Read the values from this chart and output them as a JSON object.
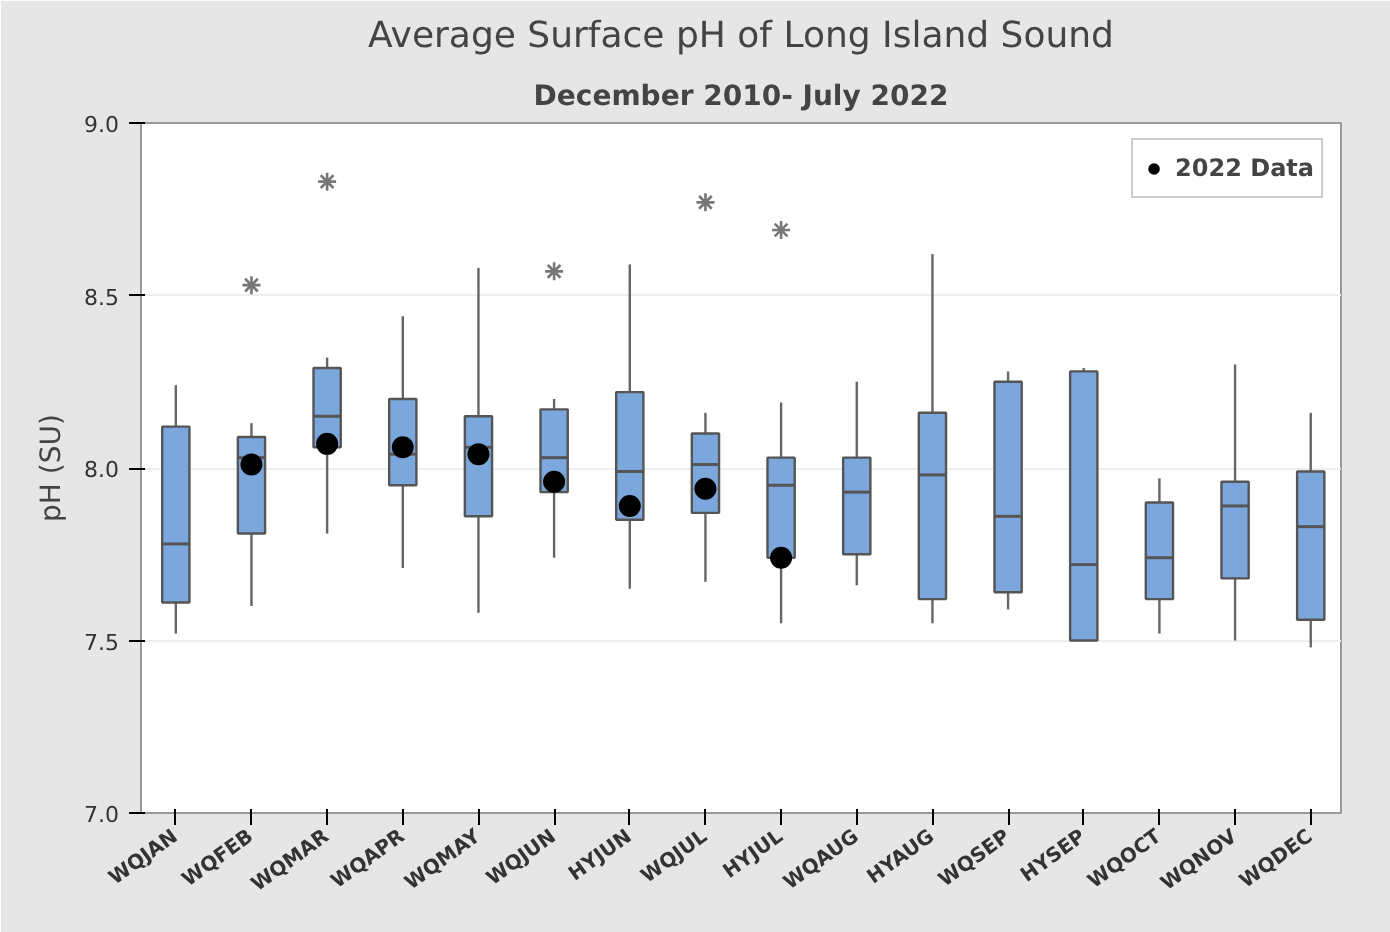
{
  "chart_data": {
    "type": "box",
    "title": "Average Surface pH of Long Island Sound",
    "subtitle": "December 2010- July 2022",
    "ylabel": "pH (SU)",
    "color": "#7ba7dc",
    "categories": [
      "WQJAN",
      "WQFEB",
      "WQMAR",
      "WQAPR",
      "WQMAY",
      "WQJUN",
      "HYJUN",
      "WQJUL",
      "HYJUL",
      "WQAUG",
      "HYAUG",
      "WQSEP",
      "HYSEP",
      "WQOCT",
      "WQNOV",
      "WQDEC"
    ],
    "boxes": [
      {
        "low": 7.52,
        "q1": 7.61,
        "median": 7.78,
        "q3": 8.12,
        "high": 8.24
      },
      {
        "low": 7.6,
        "q1": 7.81,
        "median": 8.03,
        "q3": 8.09,
        "high": 8.13,
        "outliers": [
          8.53
        ]
      },
      {
        "low": 7.81,
        "q1": 8.06,
        "median": 8.15,
        "q3": 8.29,
        "high": 8.32,
        "outliers": [
          8.83
        ]
      },
      {
        "low": 7.71,
        "q1": 7.95,
        "median": 8.04,
        "q3": 8.2,
        "high": 8.44
      },
      {
        "low": 7.58,
        "q1": 7.86,
        "median": 8.06,
        "q3": 8.15,
        "high": 8.58
      },
      {
        "low": 7.74,
        "q1": 7.93,
        "median": 8.03,
        "q3": 8.17,
        "high": 8.2,
        "outliers": [
          8.57
        ]
      },
      {
        "low": 7.65,
        "q1": 7.85,
        "median": 7.99,
        "q3": 8.22,
        "high": 8.59
      },
      {
        "low": 7.67,
        "q1": 7.87,
        "median": 8.01,
        "q3": 8.1,
        "high": 8.16,
        "outliers": [
          8.77
        ]
      },
      {
        "low": 7.55,
        "q1": 7.74,
        "median": 7.95,
        "q3": 8.03,
        "high": 8.19,
        "outliers": [
          8.69
        ]
      },
      {
        "low": 7.66,
        "q1": 7.75,
        "median": 7.93,
        "q3": 8.03,
        "high": 8.25
      },
      {
        "low": 7.55,
        "q1": 7.62,
        "median": 7.98,
        "q3": 8.16,
        "high": 8.62
      },
      {
        "low": 7.59,
        "q1": 7.64,
        "median": 7.86,
        "q3": 8.25,
        "high": 8.28
      },
      {
        "low": 7.5,
        "q1": 7.5,
        "median": 7.72,
        "q3": 8.28,
        "high": 8.29
      },
      {
        "low": 7.52,
        "q1": 7.62,
        "median": 7.74,
        "q3": 7.9,
        "high": 7.97
      },
      {
        "low": 7.5,
        "q1": 7.68,
        "median": 7.89,
        "q3": 7.96,
        "high": 8.3
      },
      {
        "low": 7.48,
        "q1": 7.56,
        "median": 7.83,
        "q3": 7.99,
        "high": 8.16
      }
    ],
    "series": [
      {
        "type": "scatter",
        "name": "2022 Data",
        "color": "#000000",
        "marker": "circle",
        "x": [
          "WQFEB",
          "WQMAR",
          "WQAPR",
          "WQMAY",
          "WQJUN",
          "HYJUN",
          "WQJUL",
          "HYJUL"
        ],
        "values": [
          8.01,
          8.07,
          8.06,
          8.04,
          7.96,
          7.89,
          7.94,
          7.74
        ]
      }
    ],
    "ylim": [
      7,
      9
    ],
    "yticks": [
      {
        "value": 7,
        "label": "7.0"
      },
      {
        "value": 7.5,
        "label": "7.5"
      },
      {
        "value": 8,
        "label": "8.0"
      },
      {
        "value": 8.5,
        "label": "8.5"
      },
      {
        "value": 9,
        "label": "9.0"
      }
    ],
    "grid": "y",
    "legend": "top right"
  }
}
